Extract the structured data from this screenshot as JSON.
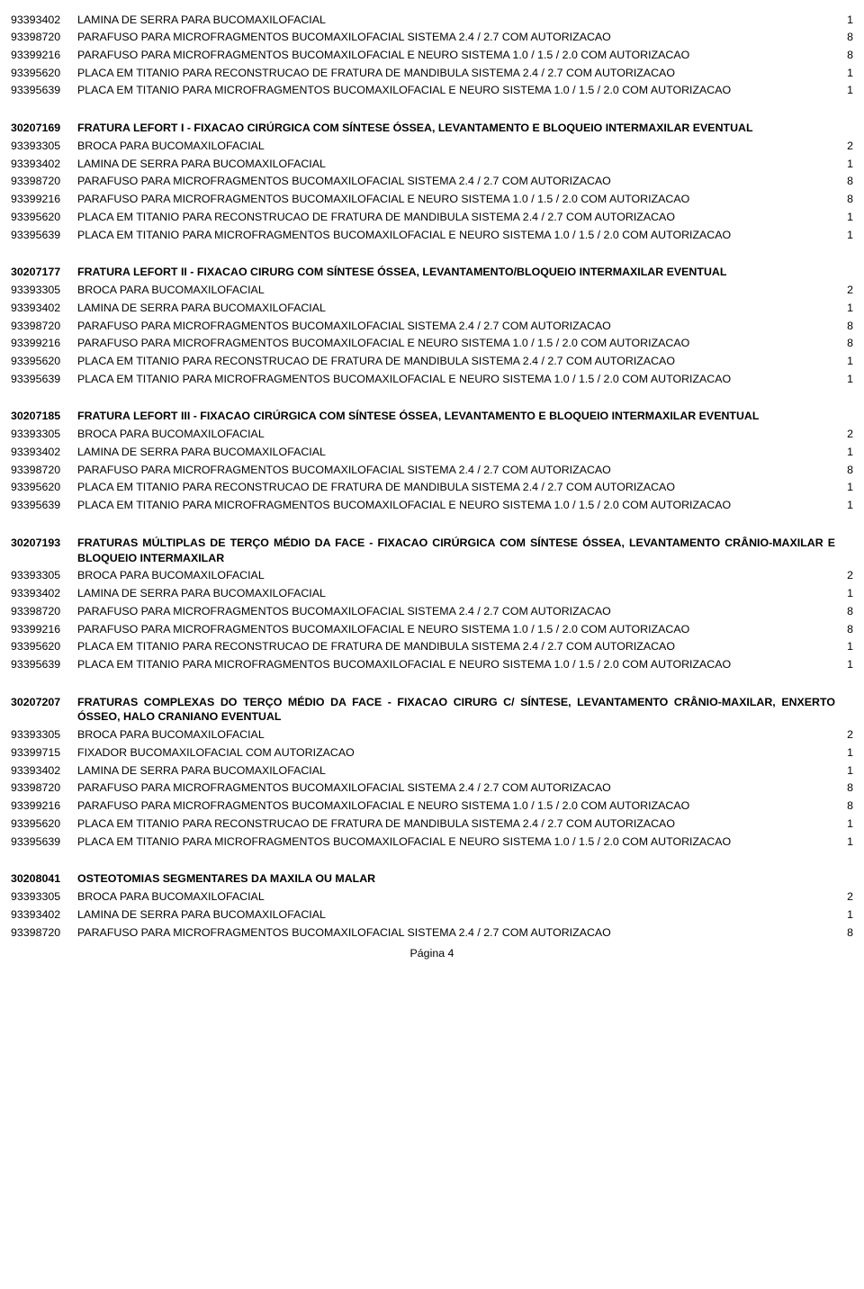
{
  "footer": "Página 4",
  "top_rows": [
    {
      "code": "93393402",
      "desc": "LAMINA DE SERRA PARA BUCOMAXILOFACIAL",
      "qty": "1"
    },
    {
      "code": "93398720",
      "desc": "PARAFUSO PARA MICROFRAGMENTOS BUCOMAXILOFACIAL  SISTEMA 2.4  / 2.7  COM AUTORIZACAO",
      "qty": "8"
    },
    {
      "code": "93399216",
      "desc": "PARAFUSO PARA MICROFRAGMENTOS BUCOMAXILOFACIAL E NEURO SISTEMA 1.0 / 1.5 / 2.0 COM AUTORIZACAO",
      "qty": "8",
      "justify": true
    },
    {
      "code": "93395620",
      "desc": "PLACA EM TITANIO PARA RECONSTRUCAO DE FRATURA DE MANDIBULA SISTEMA 2.4 / 2.7 COM AUTORIZACAO",
      "qty": "1"
    },
    {
      "code": "93395639",
      "desc": "PLACA EM TITANIO PARA MICROFRAGMENTOS BUCOMAXILOFACIAL E NEURO SISTEMA 1.0 / 1.5 / 2.0 COM AUTORIZACAO",
      "qty": "1",
      "justify": true
    }
  ],
  "sections": [
    {
      "code": "30207169",
      "title": "FRATURA LEFORT I - FIXACAO CIRÚRGICA COM SÍNTESE ÓSSEA, LEVANTAMENTO E BLOQUEIO INTERMAXILAR EVENTUAL",
      "rows": [
        {
          "code": "93393305",
          "desc": "BROCA PARA BUCOMAXILOFACIAL",
          "qty": "2"
        },
        {
          "code": "93393402",
          "desc": "LAMINA DE SERRA PARA BUCOMAXILOFACIAL",
          "qty": "1"
        },
        {
          "code": "93398720",
          "desc": "PARAFUSO PARA MICROFRAGMENTOS BUCOMAXILOFACIAL  SISTEMA 2.4  / 2.7  COM AUTORIZACAO",
          "qty": "8"
        },
        {
          "code": "93399216",
          "desc": "PARAFUSO PARA MICROFRAGMENTOS BUCOMAXILOFACIAL E NEURO SISTEMA 1.0 / 1.5 / 2.0 COM AUTORIZACAO",
          "qty": "8",
          "justify": true
        },
        {
          "code": "93395620",
          "desc": "PLACA EM TITANIO PARA RECONSTRUCAO DE FRATURA DE MANDIBULA SISTEMA 2.4 / 2.7 COM AUTORIZACAO",
          "qty": "1"
        },
        {
          "code": "93395639",
          "desc": "PLACA EM TITANIO PARA MICROFRAGMENTOS BUCOMAXILOFACIAL E NEURO SISTEMA 1.0 / 1.5 / 2.0 COM AUTORIZACAO",
          "qty": "1",
          "justify": true
        }
      ]
    },
    {
      "code": "30207177",
      "title": "FRATURA LEFORT II - FIXACAO CIRURG COM SÍNTESE ÓSSEA, LEVANTAMENTO/BLOQUEIO INTERMAXILAR EVENTUAL",
      "rows": [
        {
          "code": "93393305",
          "desc": "BROCA PARA BUCOMAXILOFACIAL",
          "qty": "2"
        },
        {
          "code": "93393402",
          "desc": "LAMINA DE SERRA PARA BUCOMAXILOFACIAL",
          "qty": "1"
        },
        {
          "code": "93398720",
          "desc": "PARAFUSO PARA MICROFRAGMENTOS BUCOMAXILOFACIAL  SISTEMA 2.4  / 2.7  COM AUTORIZACAO",
          "qty": "8"
        },
        {
          "code": "93399216",
          "desc": "PARAFUSO PARA MICROFRAGMENTOS BUCOMAXILOFACIAL E NEURO SISTEMA 1.0 / 1.5 / 2.0 COM AUTORIZACAO",
          "qty": "8",
          "justify": true
        },
        {
          "code": "93395620",
          "desc": "PLACA EM TITANIO PARA RECONSTRUCAO DE FRATURA DE MANDIBULA SISTEMA 2.4 / 2.7 COM AUTORIZACAO",
          "qty": "1"
        },
        {
          "code": "93395639",
          "desc": "PLACA EM TITANIO PARA MICROFRAGMENTOS BUCOMAXILOFACIAL E NEURO SISTEMA 1.0 / 1.5 / 2.0 COM AUTORIZACAO",
          "qty": "1",
          "justify": true
        }
      ]
    },
    {
      "code": "30207185",
      "title": "FRATURA LEFORT III - FIXACAO CIRÚRGICA COM SÍNTESE ÓSSEA, LEVANTAMENTO E BLOQUEIO INTERMAXILAR EVENTUAL",
      "rows": [
        {
          "code": "93393305",
          "desc": "BROCA PARA BUCOMAXILOFACIAL",
          "qty": "2"
        },
        {
          "code": "93393402",
          "desc": "LAMINA DE SERRA PARA BUCOMAXILOFACIAL",
          "qty": "1"
        },
        {
          "code": "93398720",
          "desc": "PARAFUSO PARA MICROFRAGMENTOS BUCOMAXILOFACIAL  SISTEMA 2.4  / 2.7  COM AUTORIZACAO",
          "qty": "8"
        },
        {
          "code": "93395620",
          "desc": "PLACA EM TITANIO PARA RECONSTRUCAO DE FRATURA DE MANDIBULA SISTEMA 2.4 / 2.7 COM AUTORIZACAO",
          "qty": "1"
        },
        {
          "code": "93395639",
          "desc": "PLACA EM TITANIO PARA MICROFRAGMENTOS BUCOMAXILOFACIAL E NEURO SISTEMA 1.0 / 1.5 / 2.0 COM AUTORIZACAO",
          "qty": "1",
          "justify": true
        }
      ]
    },
    {
      "code": "30207193",
      "title": "FRATURAS MÚLTIPLAS DE TERÇO MÉDIO DA FACE - FIXACAO CIRÚRGICA COM SÍNTESE ÓSSEA, LEVANTAMENTO CRÂNIO-MAXILAR E BLOQUEIO INTERMAXILAR",
      "rows": [
        {
          "code": "93393305",
          "desc": "BROCA PARA BUCOMAXILOFACIAL",
          "qty": "2"
        },
        {
          "code": "93393402",
          "desc": "LAMINA DE SERRA PARA BUCOMAXILOFACIAL",
          "qty": "1"
        },
        {
          "code": "93398720",
          "desc": "PARAFUSO PARA MICROFRAGMENTOS BUCOMAXILOFACIAL  SISTEMA 2.4  / 2.7  COM AUTORIZACAO",
          "qty": "8"
        },
        {
          "code": "93399216",
          "desc": "PARAFUSO PARA MICROFRAGMENTOS BUCOMAXILOFACIAL E NEURO SISTEMA 1.0 / 1.5 / 2.0 COM AUTORIZACAO",
          "qty": "8",
          "justify": true
        },
        {
          "code": "93395620",
          "desc": "PLACA EM TITANIO PARA RECONSTRUCAO DE FRATURA DE MANDIBULA SISTEMA 2.4 / 2.7 COM AUTORIZACAO",
          "qty": "1"
        },
        {
          "code": "93395639",
          "desc": "PLACA EM TITANIO PARA MICROFRAGMENTOS BUCOMAXILOFACIAL E NEURO SISTEMA 1.0 / 1.5 / 2.0 COM AUTORIZACAO",
          "qty": "1",
          "justify": true
        }
      ]
    },
    {
      "code": "30207207",
      "title": "FRATURAS COMPLEXAS DO TERÇO MÉDIO DA FACE - FIXACAO CIRURG C/ SÍNTESE, LEVANTAMENTO CRÂNIO-MAXILAR, ENXERTO ÓSSEO, HALO CRANIANO EVENTUAL",
      "rows": [
        {
          "code": "93393305",
          "desc": "BROCA PARA BUCOMAXILOFACIAL",
          "qty": "2"
        },
        {
          "code": "93399715",
          "desc": "FIXADOR BUCOMAXILOFACIAL COM AUTORIZACAO",
          "qty": "1"
        },
        {
          "code": "93393402",
          "desc": "LAMINA DE SERRA PARA BUCOMAXILOFACIAL",
          "qty": "1"
        },
        {
          "code": "93398720",
          "desc": "PARAFUSO PARA MICROFRAGMENTOS BUCOMAXILOFACIAL  SISTEMA 2.4  / 2.7  COM AUTORIZACAO",
          "qty": "8"
        },
        {
          "code": "93399216",
          "desc": "PARAFUSO PARA MICROFRAGMENTOS BUCOMAXILOFACIAL E NEURO SISTEMA 1.0 / 1.5 / 2.0 COM AUTORIZACAO",
          "qty": "8",
          "justify": true
        },
        {
          "code": "93395620",
          "desc": "PLACA EM TITANIO PARA RECONSTRUCAO DE FRATURA DE MANDIBULA SISTEMA 2.4 / 2.7 COM AUTORIZACAO",
          "qty": "1"
        },
        {
          "code": "93395639",
          "desc": "PLACA EM TITANIO PARA MICROFRAGMENTOS BUCOMAXILOFACIAL E NEURO SISTEMA 1.0 / 1.5 / 2.0 COM AUTORIZACAO",
          "qty": "1",
          "justify": true
        }
      ]
    },
    {
      "code": "30208041",
      "title": "OSTEOTOMIAS SEGMENTARES DA MAXILA OU MALAR",
      "title_single": true,
      "rows": [
        {
          "code": "93393305",
          "desc": "BROCA PARA BUCOMAXILOFACIAL",
          "qty": "2"
        },
        {
          "code": "93393402",
          "desc": "LAMINA DE SERRA PARA BUCOMAXILOFACIAL",
          "qty": "1"
        },
        {
          "code": "93398720",
          "desc": "PARAFUSO PARA MICROFRAGMENTOS BUCOMAXILOFACIAL  SISTEMA 2.4  / 2.7  COM AUTORIZACAO",
          "qty": "8"
        }
      ]
    }
  ]
}
